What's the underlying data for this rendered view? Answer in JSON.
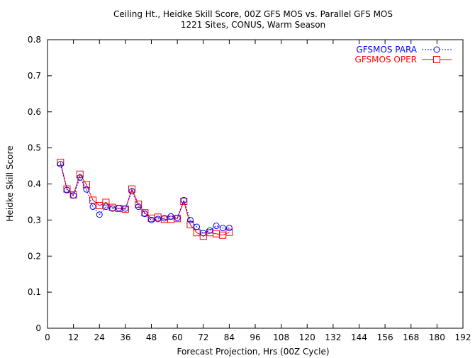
{
  "chart_data": {
    "type": "line",
    "title": "Ceiling Ht., Heidke Skill Score, 00Z GFS MOS vs. Parallel GFS MOS",
    "subtitle": "1221 Sites, CONUS, Warm Season",
    "xlabel": "Forecast Projection, Hrs (00Z Cycle)",
    "ylabel": "Heidke Skill Score",
    "xlim": [
      0,
      192
    ],
    "ylim": [
      0,
      0.8
    ],
    "xticks": [
      "0",
      "12",
      "24",
      "36",
      "48",
      "60",
      "72",
      "84",
      "96",
      "108",
      "120",
      "132",
      "144",
      "156",
      "168",
      "180",
      "192"
    ],
    "yticks": [
      "0",
      "0.1",
      "0.2",
      "0.3",
      "0.4",
      "0.5",
      "0.6",
      "0.7",
      "0.8"
    ],
    "grid": false,
    "legend_position": "top-right",
    "x": [
      6,
      9,
      12,
      15,
      18,
      21,
      24,
      27,
      30,
      33,
      36,
      39,
      42,
      45,
      48,
      51,
      54,
      57,
      60,
      63,
      66,
      69,
      72,
      75,
      78,
      81,
      84
    ],
    "series": [
      {
        "name": "GFSMOS PARA",
        "color": "#0000ff",
        "marker": "circle",
        "linestyle": "dotted",
        "values": [
          0.455,
          0.383,
          0.368,
          0.418,
          0.385,
          0.337,
          0.315,
          0.337,
          0.332,
          0.333,
          0.332,
          0.38,
          0.337,
          0.317,
          0.3,
          0.303,
          0.305,
          0.31,
          0.306,
          0.355,
          0.3,
          0.281,
          0.264,
          0.271,
          0.284,
          0.278,
          0.278
        ]
      },
      {
        "name": "GFSMOS OPER",
        "color": "#ff0000",
        "marker": "square",
        "linestyle": "solid",
        "values": [
          0.46,
          0.386,
          0.37,
          0.427,
          0.398,
          0.355,
          0.34,
          0.349,
          0.335,
          0.332,
          0.33,
          0.386,
          0.344,
          0.32,
          0.305,
          0.308,
          0.302,
          0.302,
          0.304,
          0.352,
          0.287,
          0.265,
          0.255,
          0.265,
          0.262,
          0.258,
          0.266
        ]
      }
    ]
  }
}
